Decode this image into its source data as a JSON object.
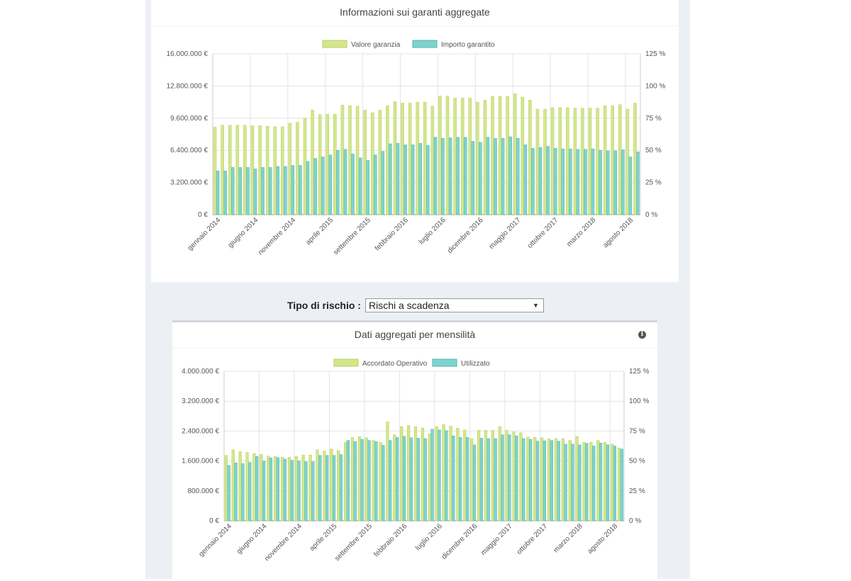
{
  "risk_filter": {
    "label": "Tipo di rischio :",
    "selected": "Rischi a scadenza"
  },
  "colors": {
    "series_green": "#d4e68c",
    "series_green_border": "#b9d060",
    "series_teal": "#7fd3ce",
    "series_teal_border": "#4fb5ae"
  },
  "chart_data": [
    {
      "type": "bar",
      "title": "Informazioni sui garanti aggregate",
      "legend_position": "top",
      "grid": true,
      "x_tick_labels": [
        "gennaio 2014",
        "giugno 2014",
        "novembre 2014",
        "aprile 2015",
        "settembre 2015",
        "febbraio 2016",
        "luglio 2016",
        "dicembre 2016",
        "maggio 2017",
        "ottobre 2017",
        "marzo 2018",
        "agosto 2018"
      ],
      "x_tick_every": 5,
      "y_left": {
        "min": 0,
        "max": 16000000,
        "ticks": [
          "0 €",
          "3.200.000 €",
          "6.400.000 €",
          "9.600.000 €",
          "12.800.000 €",
          "16.000.000 €"
        ]
      },
      "y_right": {
        "min": 0,
        "max": 125,
        "ticks": [
          "0 %",
          "25 %",
          "50 %",
          "75 %",
          "100 %",
          "125 %"
        ]
      },
      "series": [
        {
          "name": "Valore garanzia",
          "values": [
            8700000,
            8900000,
            8900000,
            8900000,
            8900000,
            8850000,
            8850000,
            8800000,
            8750000,
            8750000,
            9100000,
            9200000,
            9600000,
            10400000,
            9950000,
            10000000,
            10000000,
            10900000,
            10850000,
            10800000,
            10400000,
            10150000,
            10400000,
            10850000,
            11250000,
            11100000,
            11100000,
            11200000,
            11200000,
            10800000,
            11800000,
            11800000,
            11600000,
            11600000,
            11600000,
            11200000,
            11400000,
            11750000,
            11750000,
            11750000,
            12050000,
            11700000,
            11400000,
            10500000,
            10500000,
            10650000,
            10650000,
            10650000,
            10600000,
            10600000,
            10600000,
            10600000,
            10850000,
            10850000,
            10950000,
            10500000,
            11100000
          ]
        },
        {
          "name": "Importo garantito",
          "values": [
            4350000,
            4350000,
            4700000,
            4700000,
            4700000,
            4550000,
            4700000,
            4700000,
            4800000,
            4800000,
            4900000,
            4900000,
            5300000,
            5600000,
            5750000,
            5950000,
            6400000,
            6500000,
            6050000,
            5650000,
            5400000,
            5950000,
            6300000,
            7050000,
            7100000,
            6950000,
            6950000,
            7100000,
            6900000,
            7700000,
            7600000,
            7650000,
            7700000,
            7700000,
            7300000,
            7200000,
            7700000,
            7600000,
            7600000,
            7750000,
            7600000,
            6950000,
            6600000,
            6700000,
            6800000,
            6600000,
            6550000,
            6550000,
            6500000,
            6500000,
            6550000,
            6400000,
            6350000,
            6350000,
            6450000,
            5750000,
            6250000
          ]
        }
      ]
    },
    {
      "type": "bar",
      "title": "Dati aggregati per mensilità",
      "legend_position": "top",
      "grid": true,
      "x_tick_labels": [
        "gennaio 2014",
        "giugno 2014",
        "novembre 2014",
        "aprile 2015",
        "settembre 2015",
        "febbraio 2016",
        "luglio 2016",
        "dicembre 2016",
        "maggio 2017",
        "ottobre 2017",
        "marzo 2018",
        "agosto 2018"
      ],
      "x_tick_every": 5,
      "y_left": {
        "min": 0,
        "max": 4000000,
        "ticks": [
          "0 €",
          "800.000 €",
          "1.600.000 €",
          "2.400.000 €",
          "3.200.000 €",
          "4.000.000 €"
        ]
      },
      "y_right": {
        "min": 0,
        "max": 125,
        "ticks": [
          "0 %",
          "25 %",
          "50 %",
          "75 %",
          "100 %",
          "125 %"
        ]
      },
      "series": [
        {
          "name": "Accordato Operativo",
          "values": [
            1750000,
            1900000,
            1850000,
            1830000,
            1800000,
            1780000,
            1730000,
            1720000,
            1700000,
            1700000,
            1720000,
            1760000,
            1760000,
            1900000,
            1870000,
            1920000,
            1880000,
            2100000,
            2230000,
            2250000,
            2220000,
            2150000,
            2100000,
            2650000,
            2300000,
            2520000,
            2550000,
            2520000,
            2480000,
            2330000,
            2520000,
            2570000,
            2530000,
            2480000,
            2430000,
            2200000,
            2420000,
            2420000,
            2420000,
            2520000,
            2420000,
            2380000,
            2360000,
            2240000,
            2230000,
            2220000,
            2190000,
            2200000,
            2200000,
            2150000,
            2250000,
            2100000,
            2100000,
            2150000,
            2100000,
            2050000,
            1950000
          ]
        },
        {
          "name": "Utilizzato",
          "values": [
            1480000,
            1550000,
            1530000,
            1560000,
            1720000,
            1600000,
            1680000,
            1690000,
            1650000,
            1620000,
            1600000,
            1580000,
            1580000,
            1750000,
            1750000,
            1750000,
            1770000,
            2150000,
            2120000,
            2180000,
            2150000,
            2120000,
            2020000,
            2150000,
            2230000,
            2260000,
            2220000,
            2210000,
            2200000,
            2450000,
            2430000,
            2410000,
            2270000,
            2230000,
            2230000,
            2030000,
            2210000,
            2200000,
            2200000,
            2300000,
            2300000,
            2270000,
            2200000,
            2180000,
            2130000,
            2140000,
            2150000,
            2130000,
            2050000,
            2050000,
            2030000,
            2070000,
            2000000,
            2080000,
            2030000,
            2000000,
            1920000
          ]
        }
      ]
    }
  ]
}
